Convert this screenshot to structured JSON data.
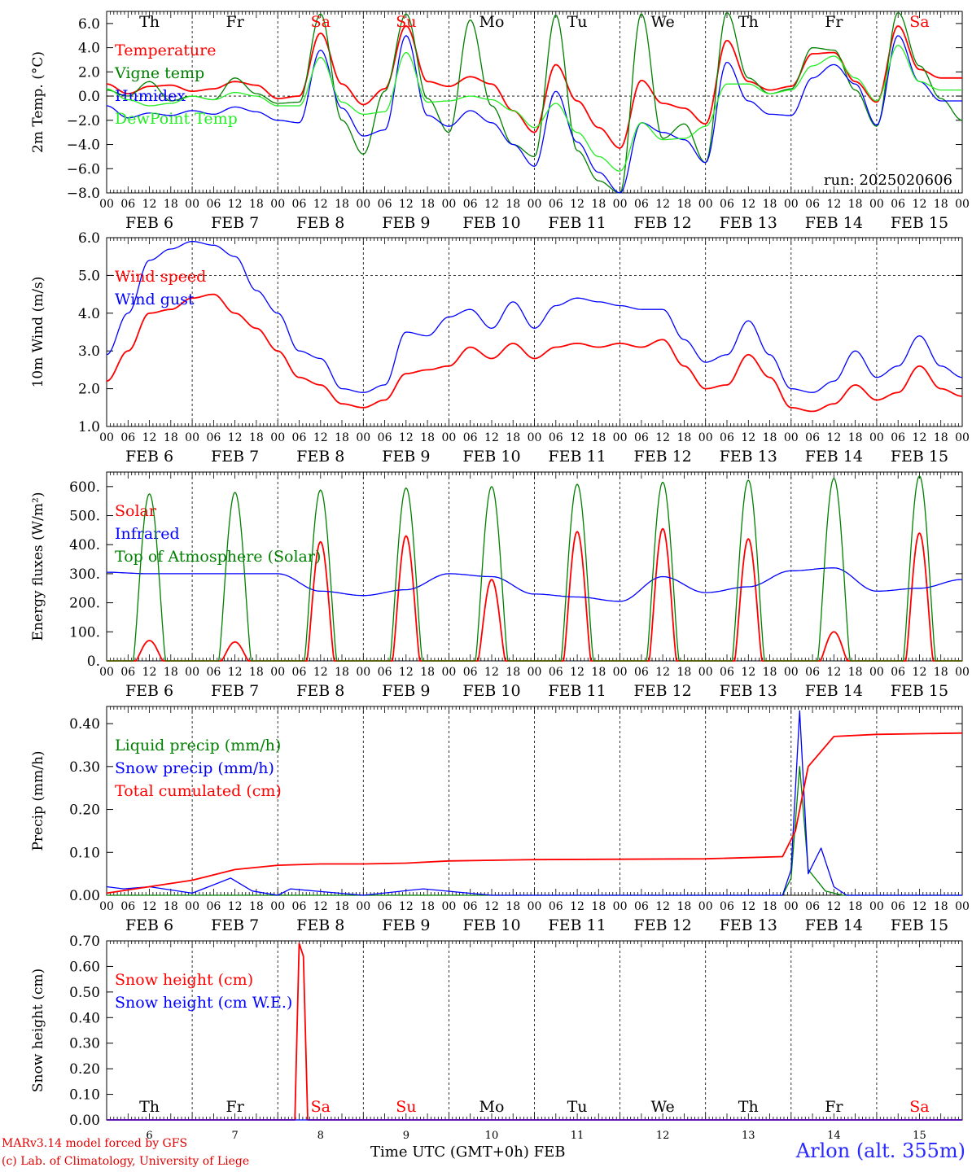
{
  "run_label": "run: 2025020606",
  "footer": {
    "model": "MARv3.14 model forced by GFS",
    "copyright": "(c) Lab. of Climatology, University of Liege",
    "axis_title": "Time UTC (GMT+0h) FEB",
    "location": "Arlon (alt. 355m)"
  },
  "days": {
    "names": [
      "Th",
      "Fr",
      "Sa",
      "Su",
      "Mo",
      "Tu",
      "We",
      "Th",
      "Fr",
      "Sa"
    ],
    "weekend": [
      false,
      false,
      true,
      true,
      false,
      false,
      false,
      false,
      false,
      true
    ],
    "dates": [
      "FEB  6",
      "FEB  7",
      "FEB  8",
      "FEB  9",
      "FEB 10",
      "FEB 11",
      "FEB 12",
      "FEB 13",
      "FEB 14",
      "FEB 15"
    ],
    "numbers": [
      "6",
      "7",
      "8",
      "9",
      "10",
      "11",
      "12",
      "13",
      "14",
      "15"
    ],
    "hour_ticks": [
      "00",
      "06",
      "12",
      "18"
    ],
    "final_hour": "00"
  },
  "colors": {
    "red": "#ff0000",
    "green": "#008000",
    "blue": "#0000ff",
    "light_green": "#22ee22",
    "weekend": "#ff0000",
    "location": "#2a2aff"
  },
  "chart_data": [
    {
      "type": "line",
      "ylabel": "2m Temp. (°C)",
      "ylim": [
        -8,
        7
      ],
      "yticks": [
        "6.0",
        "4.0",
        "2.0",
        "0.0",
        "−2.0",
        "−4.0",
        "−6.0",
        "−8.0"
      ],
      "x_unit": "days since FEB 6 00 UTC",
      "reference_line": 0,
      "series": [
        {
          "name": "Temperature",
          "color": "red",
          "x": [
            0,
            0.25,
            0.5,
            0.75,
            1,
            1.25,
            1.5,
            1.75,
            2,
            2.25,
            2.5,
            2.75,
            3,
            3.25,
            3.5,
            3.75,
            4,
            4.25,
            4.5,
            4.75,
            5,
            5.25,
            5.5,
            5.75,
            6,
            6.25,
            6.5,
            6.75,
            7,
            7.25,
            7.5,
            7.75,
            8,
            8.25,
            8.5,
            8.75,
            9,
            9.25,
            9.5,
            9.75,
            10
          ],
          "y": [
            1.0,
            0.2,
            0.8,
            0.9,
            0.4,
            0.6,
            1.2,
            0.9,
            -0.2,
            0.0,
            5.2,
            1.0,
            -0.7,
            0.6,
            5.8,
            1.2,
            0.8,
            1.6,
            1.0,
            -1.2,
            -3.0,
            2.6,
            -0.4,
            -2.6,
            -4.3,
            1.3,
            -0.6,
            -1.0,
            -2.3,
            4.6,
            1.2,
            0.5,
            0.8,
            3.5,
            3.6,
            1.2,
            -0.5,
            5.8,
            2.2,
            1.5,
            1.5
          ]
        },
        {
          "name": "Vigne temp",
          "color": "green",
          "x": [
            0,
            0.25,
            0.5,
            0.75,
            1,
            1.25,
            1.5,
            1.75,
            2,
            2.25,
            2.5,
            2.75,
            3,
            3.25,
            3.5,
            3.75,
            4,
            4.25,
            4.5,
            4.75,
            5,
            5.25,
            5.5,
            5.75,
            6,
            6.25,
            6.5,
            6.75,
            7,
            7.25,
            7.5,
            7.75,
            8,
            8.25,
            8.5,
            8.75,
            9,
            9.25,
            9.5,
            9.75,
            10
          ],
          "y": [
            0.5,
            0.0,
            1.2,
            -0.4,
            0.0,
            -0.3,
            1.5,
            0.2,
            -0.6,
            -0.5,
            6.8,
            -2.0,
            -4.8,
            0.4,
            6.8,
            -0.2,
            -3.0,
            6.3,
            -0.8,
            -4.0,
            -5.0,
            6.7,
            -4.5,
            -7.0,
            -8.0,
            6.8,
            -3.5,
            -2.3,
            -5.5,
            6.9,
            1.5,
            0.2,
            0.6,
            4.0,
            3.8,
            0.5,
            -2.5,
            6.9,
            2.5,
            -0.2,
            -2.0
          ]
        },
        {
          "name": "Humidex",
          "color": "blue",
          "x": [
            0,
            0.25,
            0.5,
            0.75,
            1,
            1.25,
            1.5,
            1.75,
            2,
            2.25,
            2.5,
            2.75,
            3,
            3.25,
            3.5,
            3.75,
            4,
            4.25,
            4.5,
            4.75,
            5,
            5.25,
            5.5,
            5.75,
            6,
            6.25,
            6.5,
            6.75,
            7,
            7.25,
            7.5,
            7.75,
            8,
            8.25,
            8.5,
            8.75,
            9,
            9.25,
            9.5,
            9.75,
            10
          ],
          "y": [
            -0.8,
            -1.8,
            -1.4,
            -1.6,
            -1.2,
            -1.5,
            -0.9,
            -1.3,
            -2.0,
            -2.2,
            3.8,
            -1.0,
            -3.3,
            -2.8,
            5.0,
            -1.6,
            -2.5,
            -1.2,
            -2.2,
            -4.0,
            -5.8,
            0.4,
            -3.8,
            -6.3,
            -8.0,
            -2.2,
            -3.0,
            -3.6,
            -5.5,
            2.8,
            -0.4,
            -1.5,
            -1.6,
            1.5,
            2.6,
            1.0,
            -2.4,
            5.0,
            1.2,
            -0.4,
            -0.4
          ]
        },
        {
          "name": "DewPoint Temp",
          "color": "light_green",
          "x": [
            0,
            0.25,
            0.5,
            0.75,
            1,
            1.25,
            1.5,
            1.75,
            2,
            2.25,
            2.5,
            2.75,
            3,
            3.25,
            3.5,
            3.75,
            4,
            4.25,
            4.5,
            4.75,
            5,
            5.25,
            5.5,
            5.75,
            6,
            6.25,
            6.5,
            6.75,
            7,
            7.25,
            7.5,
            7.75,
            8,
            8.25,
            8.5,
            8.75,
            9,
            9.25,
            9.5,
            9.75,
            10
          ],
          "y": [
            0.6,
            -0.3,
            -0.8,
            -0.6,
            0.0,
            -0.3,
            0.3,
            0.0,
            -0.8,
            -0.8,
            3.2,
            -0.5,
            -1.5,
            -1.3,
            3.6,
            -0.5,
            -0.4,
            0.0,
            -0.3,
            -1.2,
            -2.6,
            -0.6,
            -3.0,
            -5.0,
            -6.2,
            -2.2,
            -3.6,
            -3.5,
            -2.5,
            1.0,
            1.0,
            0.2,
            0.5,
            2.5,
            3.3,
            1.5,
            -0.4,
            4.2,
            1.2,
            0.5,
            0.5
          ]
        }
      ]
    },
    {
      "type": "line",
      "ylabel": "10m Wind (m/s)",
      "ylim": [
        1,
        6
      ],
      "yticks": [
        "6.0",
        "5.0",
        "4.0",
        "3.0",
        "2.0",
        "1.0"
      ],
      "x_unit": "days since FEB 6 00 UTC",
      "reference_line": 5,
      "series": [
        {
          "name": "Wind speed",
          "color": "red",
          "x": [
            0,
            0.25,
            0.5,
            0.75,
            1,
            1.25,
            1.5,
            1.75,
            2,
            2.25,
            2.5,
            2.75,
            3,
            3.25,
            3.5,
            3.75,
            4,
            4.25,
            4.5,
            4.75,
            5,
            5.25,
            5.5,
            5.75,
            6,
            6.25,
            6.5,
            6.75,
            7,
            7.25,
            7.5,
            7.75,
            8,
            8.25,
            8.5,
            8.75,
            9,
            9.25,
            9.5,
            9.75,
            10
          ],
          "y": [
            2.2,
            3.0,
            4.0,
            4.1,
            4.4,
            4.5,
            4.0,
            3.6,
            3.0,
            2.3,
            2.1,
            1.6,
            1.5,
            1.7,
            2.4,
            2.5,
            2.6,
            3.1,
            2.8,
            3.2,
            2.8,
            3.1,
            3.2,
            3.1,
            3.2,
            3.1,
            3.3,
            2.6,
            2.0,
            2.1,
            2.9,
            2.3,
            1.5,
            1.4,
            1.6,
            2.1,
            1.7,
            1.9,
            2.6,
            2.0,
            1.8
          ]
        },
        {
          "name": "Wind gust",
          "color": "blue",
          "x": [
            0,
            0.25,
            0.5,
            0.75,
            1,
            1.25,
            1.5,
            1.75,
            2,
            2.25,
            2.5,
            2.75,
            3,
            3.25,
            3.5,
            3.75,
            4,
            4.25,
            4.5,
            4.75,
            5,
            5.25,
            5.5,
            5.75,
            6,
            6.25,
            6.5,
            6.75,
            7,
            7.25,
            7.5,
            7.75,
            8,
            8.25,
            8.5,
            8.75,
            9,
            9.25,
            9.5,
            9.75,
            10
          ],
          "y": [
            2.9,
            4.0,
            5.4,
            5.7,
            5.9,
            5.8,
            5.5,
            4.6,
            4.0,
            3.0,
            2.8,
            2.0,
            1.9,
            2.1,
            3.5,
            3.4,
            3.9,
            4.1,
            3.6,
            4.3,
            3.6,
            4.2,
            4.4,
            4.3,
            4.2,
            4.1,
            4.1,
            3.3,
            2.7,
            2.9,
            3.8,
            2.9,
            2.0,
            1.9,
            2.2,
            3.0,
            2.3,
            2.6,
            3.4,
            2.6,
            2.3
          ]
        }
      ]
    },
    {
      "type": "line",
      "ylabel": "Energy fluxes (W/m²)",
      "ylim": [
        0,
        650
      ],
      "yticks": [
        "600.",
        "500.",
        "400.",
        "300.",
        "200.",
        "100.",
        "0."
      ],
      "x_unit": "days since FEB 6 00 UTC",
      "series": [
        {
          "name": "Solar",
          "color": "red",
          "day_peaks": [
            70,
            65,
            410,
            430,
            280,
            445,
            455,
            420,
            100,
            440
          ]
        },
        {
          "name": "Infrared",
          "color": "blue",
          "x": [
            0,
            0.5,
            1,
            1.5,
            2,
            2.5,
            3,
            3.5,
            4,
            4.5,
            5,
            5.5,
            6,
            6.5,
            7,
            7.5,
            8,
            8.5,
            9,
            9.5,
            10
          ],
          "y": [
            305,
            300,
            300,
            300,
            300,
            240,
            225,
            245,
            300,
            290,
            230,
            220,
            205,
            290,
            235,
            255,
            310,
            320,
            240,
            250,
            280
          ]
        },
        {
          "name": "Top of Atmosphere (Solar)",
          "color": "green",
          "day_peaks": [
            575,
            580,
            588,
            595,
            600,
            608,
            615,
            622,
            628,
            636
          ]
        }
      ]
    },
    {
      "type": "line",
      "ylabel": "Precip (mm/h)",
      "ylim": [
        0,
        0.44
      ],
      "yticks": [
        "0.40",
        "0.30",
        "0.20",
        "0.10",
        "0.00"
      ],
      "x_unit": "days since FEB 6 00 UTC",
      "series": [
        {
          "name": "Liquid precip (mm/h)",
          "color": "green",
          "x": [
            0,
            0.5,
            1,
            1.5,
            2,
            7.9,
            8.0,
            8.1,
            8.2,
            8.4,
            8.6,
            10
          ],
          "y": [
            0,
            0,
            0,
            0,
            0,
            0,
            0.04,
            0.3,
            0.06,
            0.01,
            0,
            0
          ]
        },
        {
          "name": "Snow precip (mm/h)",
          "color": "blue",
          "x": [
            0,
            0.2,
            0.5,
            1.0,
            1.45,
            1.7,
            2.0,
            2.15,
            3.0,
            3.7,
            4.5,
            7.9,
            8.0,
            8.1,
            8.2,
            8.35,
            8.5,
            8.65,
            9.0,
            10
          ],
          "y": [
            0.02,
            0.015,
            0.02,
            0.005,
            0.04,
            0.01,
            0.0,
            0.015,
            0.0,
            0.015,
            0.0,
            0.0,
            0.06,
            0.43,
            0.05,
            0.11,
            0.02,
            0.0,
            0.0,
            0.0
          ]
        },
        {
          "name": "Total cumulated (cm)",
          "color": "red",
          "x": [
            0,
            1,
            1.5,
            2,
            2.5,
            3,
            3.5,
            4,
            5,
            6,
            7,
            7.9,
            8.05,
            8.2,
            8.5,
            9,
            10
          ],
          "y": [
            0.005,
            0.035,
            0.06,
            0.07,
            0.073,
            0.073,
            0.075,
            0.08,
            0.083,
            0.084,
            0.085,
            0.09,
            0.15,
            0.3,
            0.37,
            0.375,
            0.378
          ]
        }
      ]
    },
    {
      "type": "line",
      "ylabel": "Snow height (cm)",
      "ylim": [
        0,
        0.7
      ],
      "yticks": [
        "0.70",
        "0.60",
        "0.50",
        "0.40",
        "0.30",
        "0.20",
        "0.10",
        "0.00"
      ],
      "x_unit": "days since FEB 6 00 UTC",
      "series": [
        {
          "name": "Snow height (cm)",
          "color": "red",
          "x": [
            0,
            2.2,
            2.25,
            2.3,
            2.35,
            10
          ],
          "y": [
            0,
            0,
            0.69,
            0.64,
            0,
            0
          ]
        },
        {
          "name": "Snow height (cm W.E.)",
          "color": "blue",
          "x": [
            0,
            10
          ],
          "y": [
            0,
            0
          ]
        }
      ]
    }
  ]
}
